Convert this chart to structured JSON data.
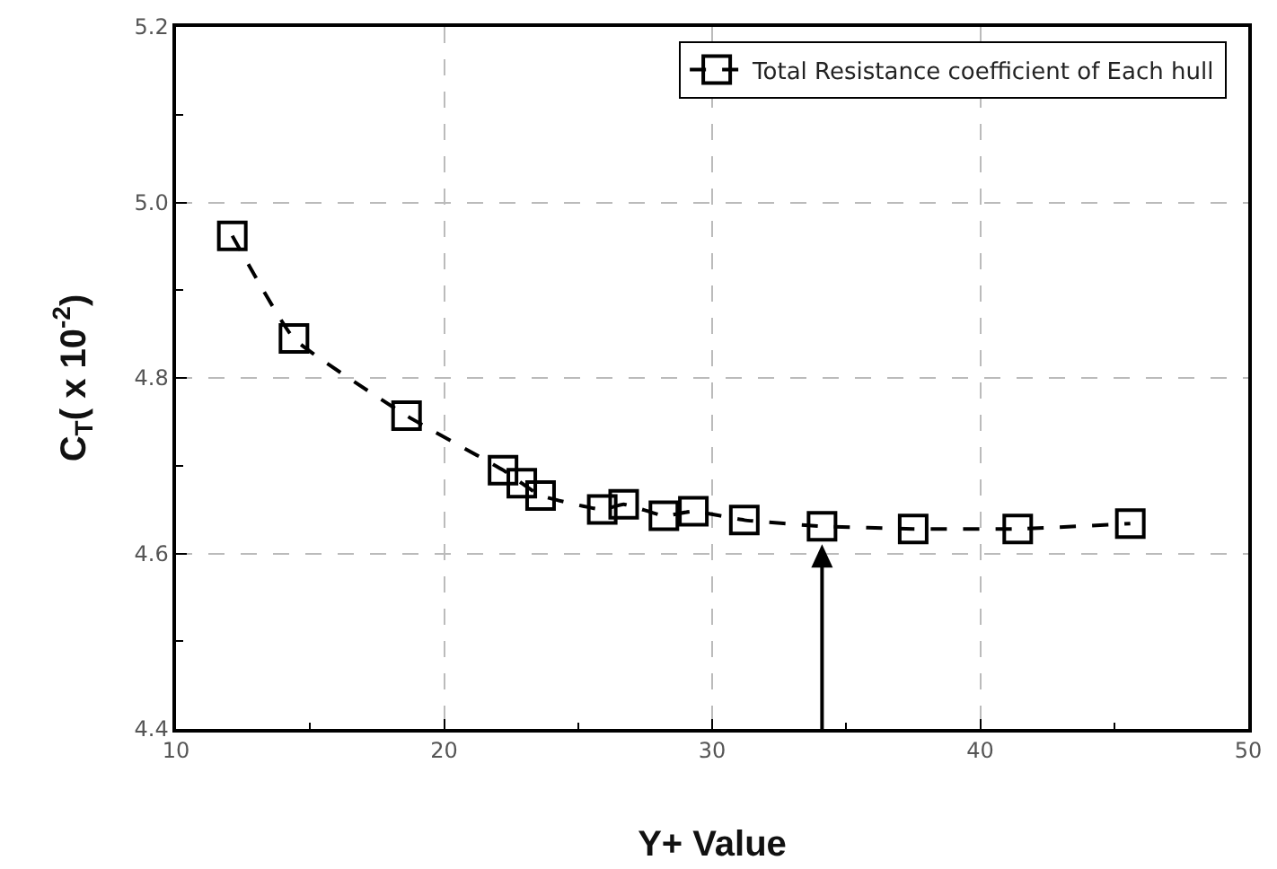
{
  "chart_data": {
    "type": "line",
    "xlabel": "Y+ Value",
    "ylabel": "C$_{T}$( x 10$^{-2}$)",
    "series": [
      {
        "name": "Total Resistance coefficient of Each hull",
        "color": "#000000",
        "x": [
          12.1,
          14.4,
          18.6,
          22.2,
          22.9,
          23.6,
          25.9,
          26.7,
          28.2,
          29.3,
          31.2,
          34.1,
          37.5,
          41.4,
          45.6
        ],
        "values": [
          4.962,
          4.845,
          4.757,
          4.695,
          4.68,
          4.666,
          4.65,
          4.656,
          4.643,
          4.648,
          4.638,
          4.631,
          4.628,
          4.628,
          4.634
        ]
      }
    ],
    "xlim": [
      10,
      50
    ],
    "xticks": [
      10,
      20,
      30,
      40,
      50
    ],
    "ylim": [
      4.4,
      5.2
    ],
    "yticks": [
      {
        "value": 4.4,
        "label": "4.4"
      },
      {
        "value": 4.6,
        "label": "4.6"
      },
      {
        "value": 4.8,
        "label": "4.8"
      },
      {
        "value": 5.0,
        "label": "5.0"
      },
      {
        "value": 5.2,
        "label": "5.2"
      }
    ],
    "ref_lines": [
      {
        "axis": "x",
        "value": 34.1
      }
    ],
    "grid": true,
    "legend": "top right",
    "marker": "square",
    "line_style": "dashed"
  }
}
